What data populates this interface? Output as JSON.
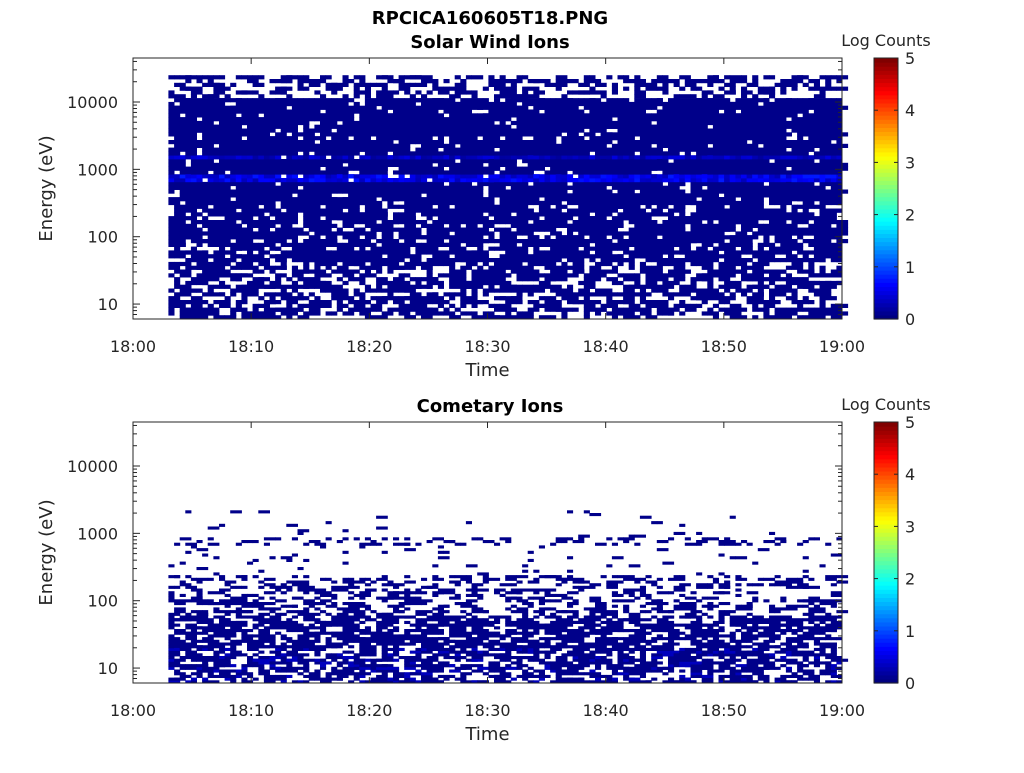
{
  "figure_title": "RPCICA160605T18.PNG",
  "chart_data": [
    {
      "type": "heatmap",
      "title": "Solar Wind Ions",
      "xlabel": "Time",
      "ylabel": "Energy (eV)",
      "x_tick_labels": [
        "18:00",
        "18:10",
        "18:20",
        "18:30",
        "18:40",
        "18:50",
        "19:00"
      ],
      "xlim": [
        "18:00",
        "19:00"
      ],
      "y_scale": "log",
      "ylim": [
        6,
        45000
      ],
      "y_tick_labels": [
        "10",
        "100",
        "1000",
        "10000"
      ],
      "data_x_start": "18:03",
      "data_x_end": "19:00",
      "colorbar": {
        "label": "Log Counts",
        "ticks": [
          "0",
          "1",
          "2",
          "3",
          "4",
          "5"
        ],
        "range": [
          0,
          5
        ],
        "colormap": "jet"
      },
      "description_values": {
        "dominant_log_counts": 0.05,
        "peak_band_energy_eV": 750,
        "peak_band_log_counts": 0.5,
        "secondary_band_energy_eV": 1500,
        "secondary_band_log_counts": 0.35,
        "max_energy_eV": 25000
      }
    },
    {
      "type": "heatmap",
      "title": "Cometary Ions",
      "xlabel": "Time",
      "ylabel": "Energy (eV)",
      "x_tick_labels": [
        "18:00",
        "18:10",
        "18:20",
        "18:30",
        "18:40",
        "18:50",
        "19:00"
      ],
      "xlim": [
        "18:00",
        "19:00"
      ],
      "y_scale": "log",
      "ylim": [
        6,
        45000
      ],
      "y_tick_labels": [
        "10",
        "100",
        "1000",
        "10000"
      ],
      "data_x_start": "18:03",
      "data_x_end": "19:00",
      "colorbar": {
        "label": "Log Counts",
        "ticks": [
          "0",
          "1",
          "2",
          "3",
          "4",
          "5"
        ],
        "range": [
          0,
          5
        ],
        "colormap": "jet"
      },
      "description_values": {
        "dominant_log_counts": 0.05,
        "dense_below_energy_eV": 60,
        "sparse_band_energy_eV": 750,
        "max_energy_eV": 2200,
        "low_energy_patch_log_counts": 0.3
      }
    }
  ]
}
